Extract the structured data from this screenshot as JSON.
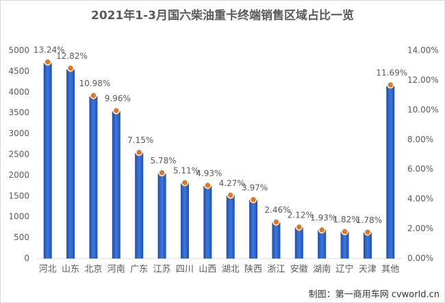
{
  "chart_data": {
    "type": "bar",
    "title": "2021年1-3月国六柴油重卡终端销售区域占比一览",
    "categories": [
      "河北",
      "山东",
      "北京",
      "河南",
      "广东",
      "江苏",
      "四川",
      "山西",
      "湖北",
      "陕西",
      "浙江",
      "安徽",
      "湖南",
      "辽宁",
      "天津",
      "其他"
    ],
    "series": [
      {
        "type": "bar",
        "color": "#2f62c4",
        "values": [
          4700,
          4550,
          3900,
          3540,
          2540,
          2050,
          1810,
          1750,
          1520,
          1410,
          870,
          750,
          690,
          650,
          630,
          4150
        ]
      },
      {
        "type": "scatter",
        "color": "#e8741c",
        "axis": "y2",
        "values": [
          13.24,
          12.82,
          10.98,
          9.96,
          7.15,
          5.78,
          5.11,
          4.93,
          4.27,
          3.97,
          2.46,
          2.12,
          1.93,
          1.82,
          1.78,
          11.69
        ],
        "value_labels": [
          "13.24%",
          "12.82%",
          "10.98%",
          "9.96%",
          "7.15%",
          "5.78%",
          "5.11%",
          "4.93%",
          "4.27%",
          "3.97%",
          "2.46%",
          "2.12%",
          "1.93%",
          "1.82%",
          "1.78%",
          "11.69%"
        ]
      }
    ],
    "ylim": [
      0,
      5000
    ],
    "yticks": [
      0,
      500,
      1000,
      1500,
      2000,
      2500,
      3000,
      3500,
      4000,
      4500,
      5000
    ],
    "y2lim": [
      0,
      14
    ],
    "y2ticks": [
      {
        "value": 0,
        "label": "0.00%"
      },
      {
        "value": 2,
        "label": "2.00%"
      },
      {
        "value": 4,
        "label": "4.00%"
      },
      {
        "value": 6,
        "label": "6.00%"
      },
      {
        "value": 8,
        "label": "8.00%"
      },
      {
        "value": 10,
        "label": "10.00%"
      },
      {
        "value": 12,
        "label": "12.00%"
      },
      {
        "value": 14,
        "label": "14.00%"
      }
    ],
    "grid": false,
    "source": "制图：第一商用车网 cvworld.cn"
  }
}
